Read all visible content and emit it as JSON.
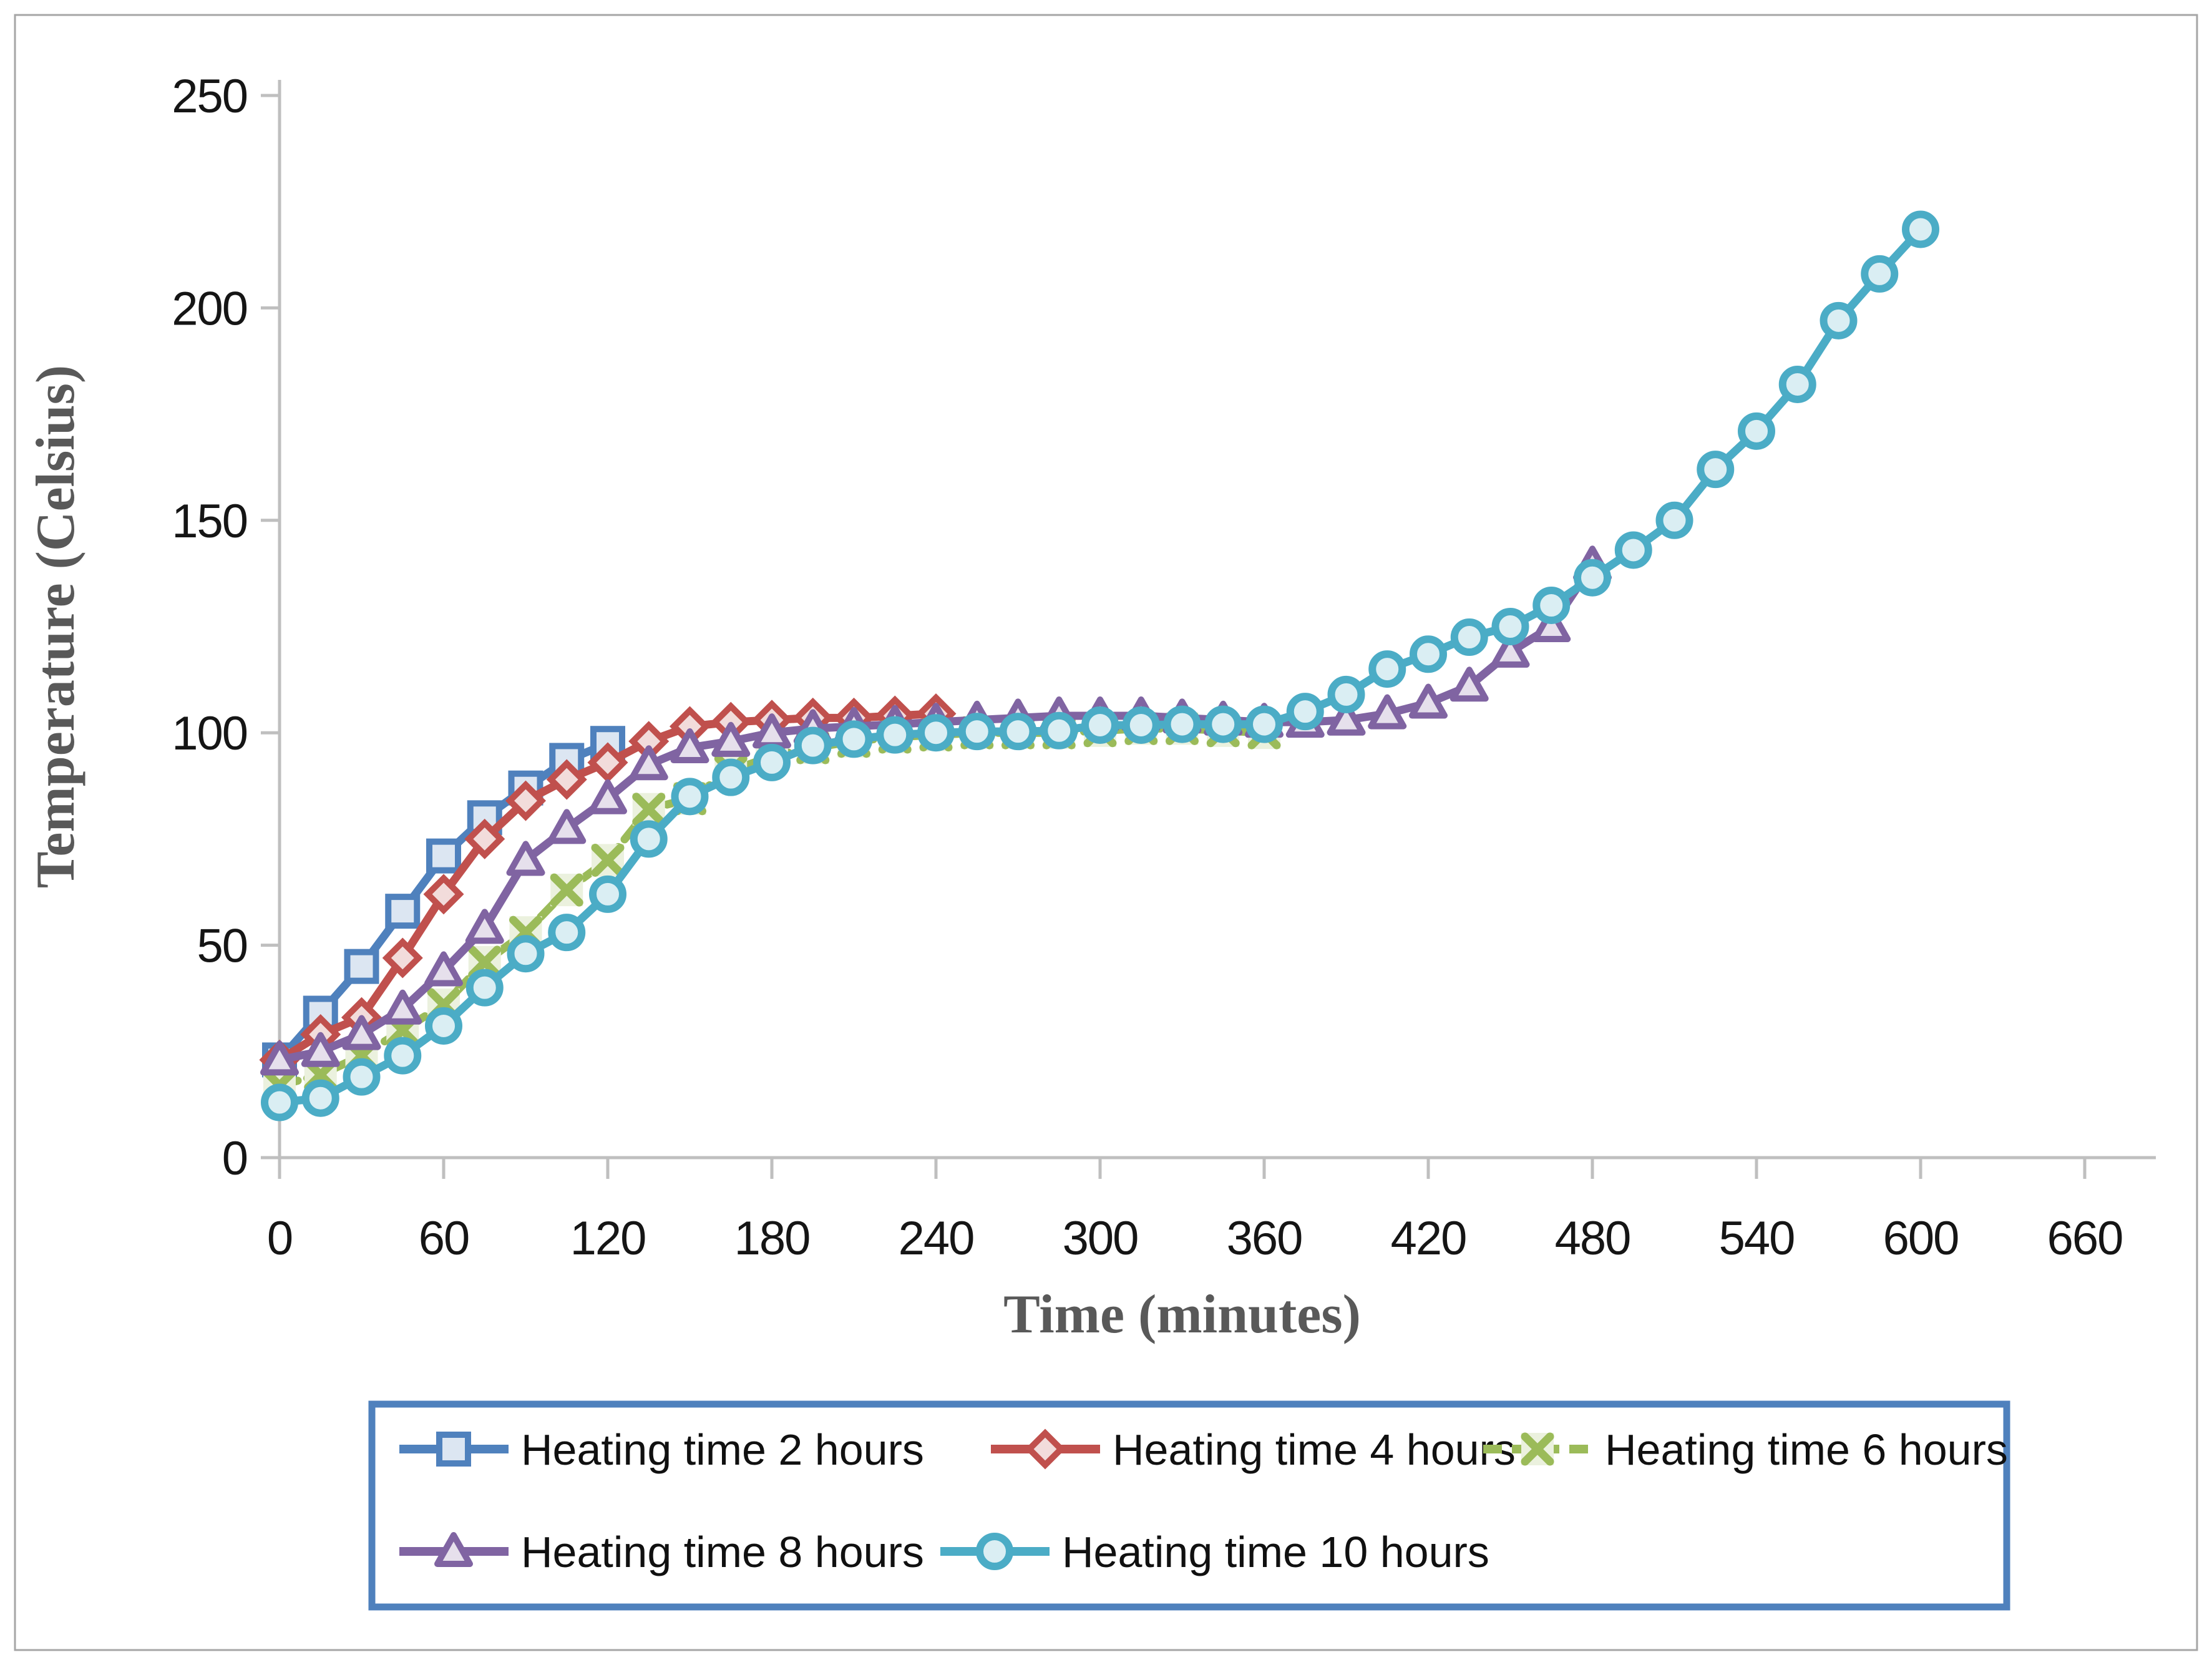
{
  "chart_data": {
    "type": "line",
    "title": "",
    "xlabel": "Time (minutes)",
    "ylabel": "Temperature (Celsius)",
    "xlim": [
      0,
      660
    ],
    "ylim": [
      0,
      250
    ],
    "x_ticks": [
      0,
      60,
      120,
      180,
      240,
      300,
      360,
      420,
      480,
      540,
      600,
      660
    ],
    "y_ticks": [
      0,
      50,
      100,
      150,
      200,
      250
    ],
    "grid": false,
    "legend_position": "bottom",
    "axis_color": "#BFBFBF",
    "tick_label_color": "#151515",
    "axis_title_color": "#595959",
    "legend_border_color": "#4F81BD",
    "sample_interval_minutes": 15,
    "series": [
      {
        "name": "Heating time 2 hours",
        "marker": "square",
        "line_style": "solid",
        "color": "#4F81BD",
        "marker_fill": "#DCE6F2",
        "x": [
          0,
          15,
          30,
          45,
          60,
          75,
          90,
          105,
          120
        ],
        "values": [
          23,
          34,
          45,
          58,
          71,
          80,
          87,
          93.5,
          97.5
        ]
      },
      {
        "name": "Heating time 4 hours",
        "marker": "diamond",
        "line_style": "solid",
        "color": "#C0504D",
        "marker_fill": "#F2DCDB",
        "x": [
          0,
          15,
          30,
          45,
          60,
          75,
          90,
          105,
          120,
          135,
          150,
          165,
          180,
          195,
          210,
          225,
          240
        ],
        "values": [
          23,
          29,
          33,
          47,
          62,
          75,
          84,
          89,
          93,
          98,
          101.5,
          102.5,
          103,
          103.5,
          103.5,
          104,
          104.5
        ]
      },
      {
        "name": "Heating time 6 hours",
        "marker": "x",
        "line_style": "dashed",
        "color": "#9BBB59",
        "marker_fill": "#EBF1DE",
        "x": [
          0,
          15,
          30,
          45,
          60,
          75,
          90,
          105,
          120,
          135,
          150,
          165,
          180,
          195,
          210,
          225,
          240,
          255,
          270,
          285,
          300,
          315,
          330,
          345,
          360
        ],
        "values": [
          17,
          19.5,
          24,
          30,
          36,
          46,
          53,
          63,
          70,
          82,
          84.5,
          91,
          94.5,
          96.5,
          98,
          99,
          99.5,
          100,
          100,
          100,
          100.5,
          101,
          101,
          100.5,
          100
        ]
      },
      {
        "name": "Heating time 8 hours",
        "marker": "triangle",
        "line_style": "solid",
        "color": "#8064A2",
        "marker_fill": "#E6E0EC",
        "x": [
          0,
          15,
          30,
          45,
          60,
          75,
          90,
          105,
          120,
          135,
          150,
          165,
          180,
          195,
          210,
          225,
          240,
          255,
          270,
          285,
          300,
          315,
          330,
          345,
          360,
          375,
          390,
          405,
          420,
          435,
          450,
          465,
          480
        ],
        "values": [
          23,
          25,
          29,
          35,
          44,
          54,
          70,
          77.5,
          84.5,
          92.5,
          96.5,
          98,
          100,
          101,
          101.5,
          102,
          102.5,
          103,
          103.5,
          104,
          104,
          104,
          103.5,
          103,
          102.5,
          102.5,
          103,
          104.5,
          107,
          111,
          119,
          125,
          139.5
        ]
      },
      {
        "name": "Heating time 10 hours",
        "marker": "circle",
        "line_style": "solid",
        "color": "#4BACC6",
        "marker_fill": "#DAEEF3",
        "x": [
          0,
          15,
          30,
          45,
          60,
          75,
          90,
          105,
          120,
          135,
          150,
          165,
          180,
          195,
          210,
          225,
          240,
          255,
          270,
          285,
          300,
          315,
          330,
          345,
          360,
          375,
          390,
          405,
          420,
          435,
          450,
          465,
          480,
          495,
          510,
          525,
          540,
          555,
          570,
          585,
          600
        ],
        "values": [
          13,
          14,
          19,
          24,
          31,
          40,
          48,
          53,
          62,
          75,
          85,
          89.5,
          93,
          97,
          98.5,
          99.5,
          100,
          100.3,
          100.3,
          100.5,
          101.8,
          101.8,
          102,
          102,
          102,
          105,
          109,
          115,
          118.5,
          122.5,
          125,
          130,
          136.5,
          143,
          150,
          162,
          171,
          182,
          197,
          208,
          218.5
        ]
      }
    ],
    "legend": {
      "rows": [
        [
          "Heating time 2 hours",
          "Heating time 4 hours",
          "Heating time 6 hours"
        ],
        [
          "Heating time 8 hours",
          "Heating time 10 hours"
        ]
      ]
    }
  }
}
